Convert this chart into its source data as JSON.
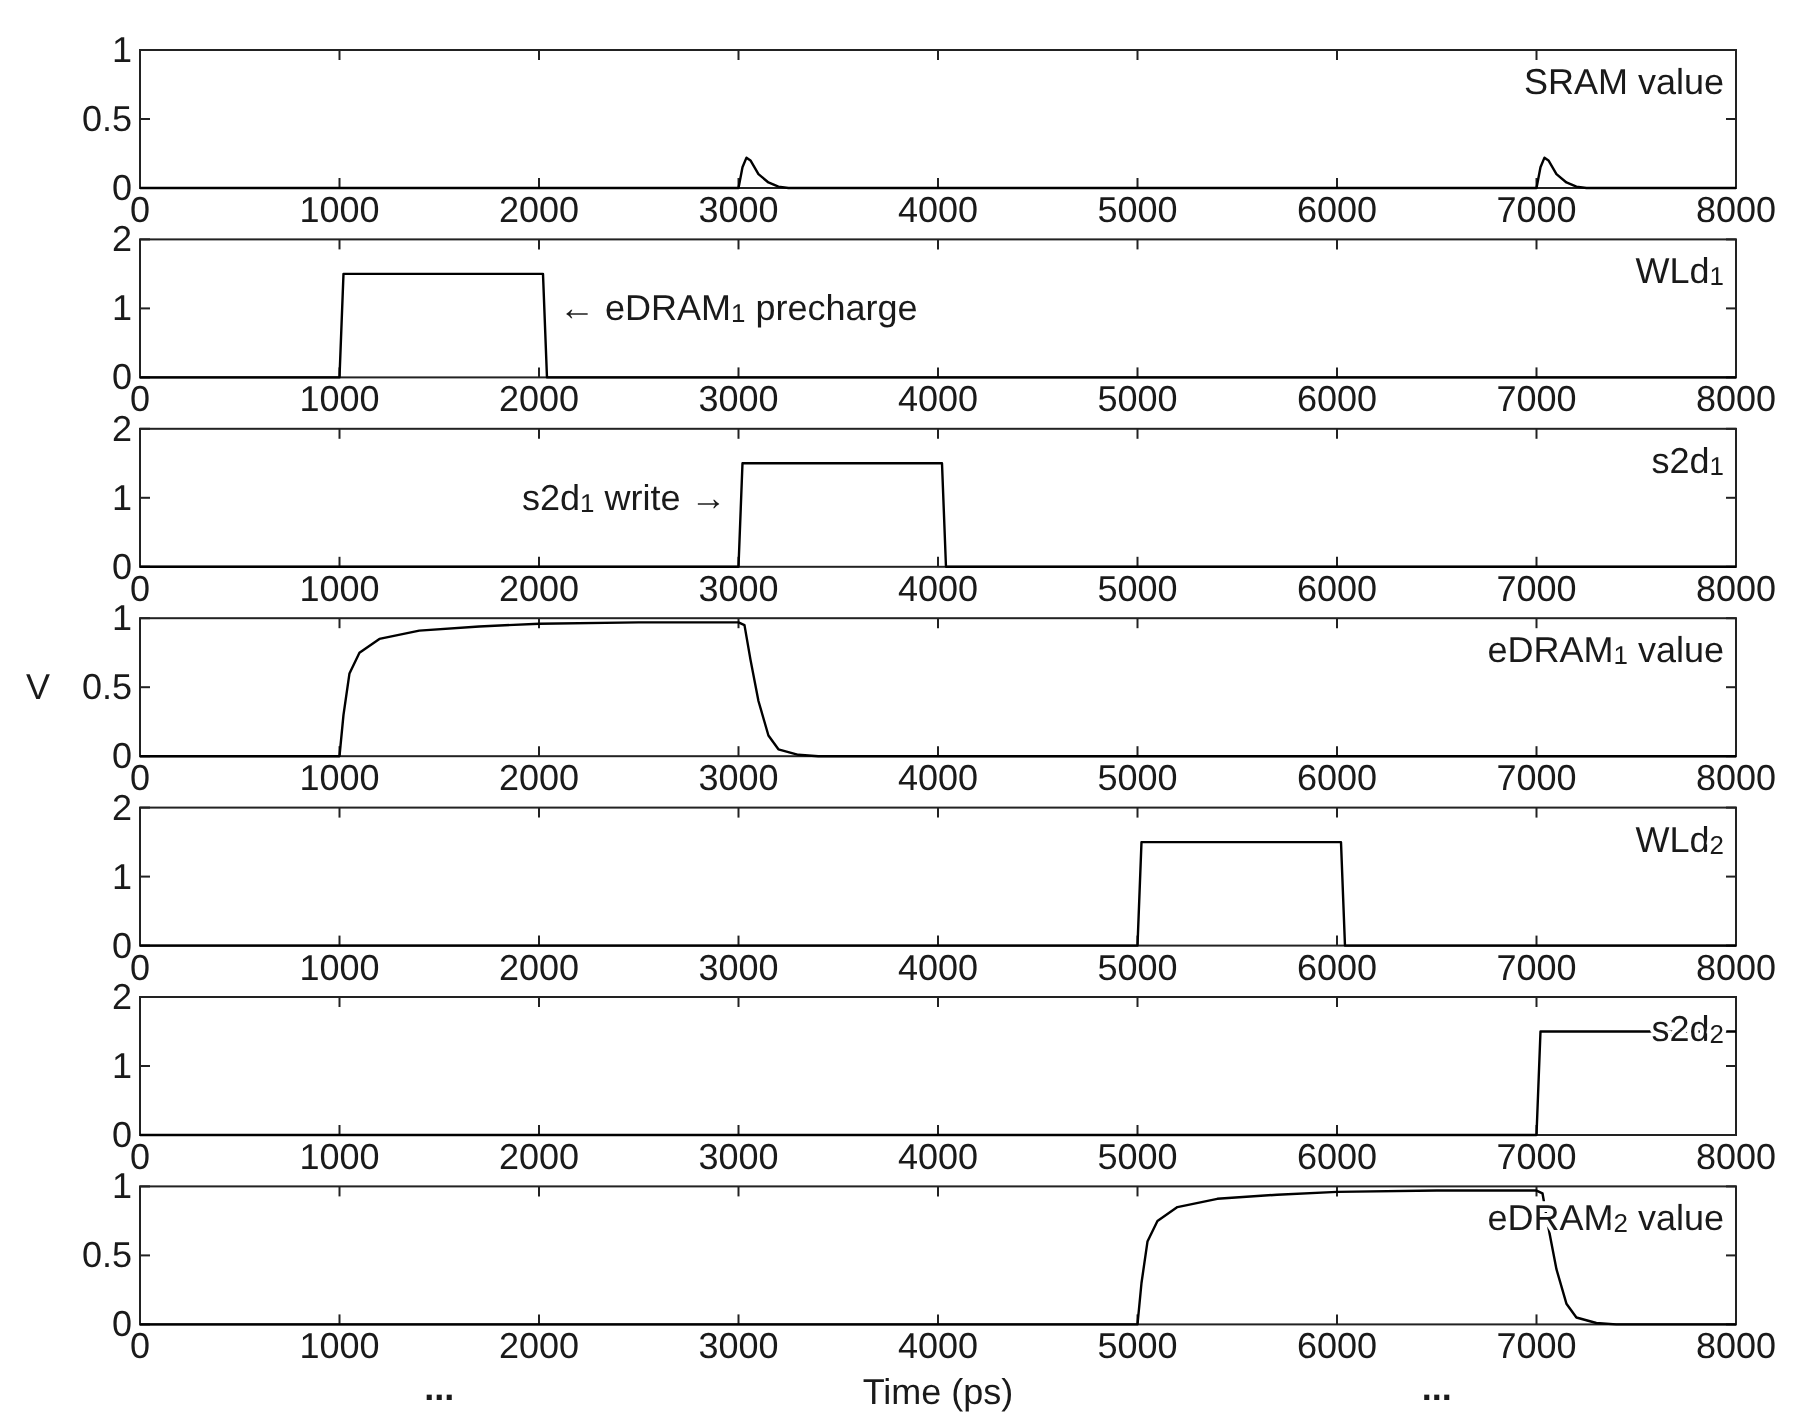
{
  "chart_data": [
    {
      "type": "line",
      "annotations": [
        "SRAM value"
      ],
      "xlim": [
        0,
        8000
      ],
      "xticks": [
        0,
        1000,
        2000,
        3000,
        4000,
        5000,
        6000,
        7000,
        8000
      ],
      "ylim": [
        0,
        1
      ],
      "yticks": [
        0,
        0.5,
        1
      ],
      "series": [
        {
          "color": "#000000",
          "x": [
            0,
            3000,
            3020,
            3040,
            3060,
            3100,
            3150,
            3200,
            3250,
            7000,
            7020,
            7040,
            7060,
            7100,
            7150,
            7200,
            7250,
            8000
          ],
          "values": [
            0,
            0,
            0.15,
            0.22,
            0.2,
            0.1,
            0.04,
            0.01,
            0,
            0,
            0.15,
            0.22,
            0.2,
            0.1,
            0.04,
            0.01,
            0,
            0
          ]
        }
      ]
    },
    {
      "type": "line",
      "annotations": [
        "WLd$_{1}$",
        {
          "text": "← eDRAM$_{1}$ precharge",
          "x": 2040,
          "y": 1
        }
      ],
      "xlim": [
        0,
        8000
      ],
      "xticks": [
        0,
        1000,
        2000,
        3000,
        4000,
        5000,
        6000,
        7000,
        8000
      ],
      "ylim": [
        0,
        2
      ],
      "yticks": [
        0,
        1,
        2
      ],
      "series": [
        {
          "color": "#000000",
          "x": [
            0,
            1000,
            1020,
            2020,
            2040,
            8000
          ],
          "values": [
            0,
            0,
            1.5,
            1.5,
            0,
            0
          ]
        }
      ]
    },
    {
      "type": "line",
      "annotations": [
        "s2d$_{1}$",
        {
          "text": "s2d$_{1}$ write →",
          "x": 3000,
          "y": 1
        }
      ],
      "xlim": [
        0,
        8000
      ],
      "xticks": [
        0,
        1000,
        2000,
        3000,
        4000,
        5000,
        6000,
        7000,
        8000
      ],
      "ylim": [
        0,
        2
      ],
      "yticks": [
        0,
        1,
        2
      ],
      "series": [
        {
          "color": "#000000",
          "x": [
            0,
            3000,
            3020,
            4020,
            4040,
            8000
          ],
          "values": [
            0,
            0,
            1.5,
            1.5,
            0,
            0
          ]
        }
      ]
    },
    {
      "type": "line",
      "ylabel": "V",
      "annotations": [
        "eDRAM$_{1}$ value"
      ],
      "xlim": [
        0,
        8000
      ],
      "xticks": [
        0,
        1000,
        2000,
        3000,
        4000,
        5000,
        6000,
        7000,
        8000
      ],
      "ylim": [
        0,
        1
      ],
      "yticks": [
        0,
        0.5,
        1
      ],
      "series": [
        {
          "color": "#000000",
          "x": [
            0,
            1000,
            1020,
            1050,
            1100,
            1200,
            1400,
            1700,
            2000,
            2500,
            3000,
            3030,
            3060,
            3100,
            3150,
            3200,
            3300,
            3400,
            8000
          ],
          "values": [
            0,
            0,
            0.3,
            0.6,
            0.75,
            0.85,
            0.91,
            0.94,
            0.96,
            0.97,
            0.97,
            0.95,
            0.7,
            0.4,
            0.15,
            0.05,
            0.01,
            0,
            0
          ]
        }
      ]
    },
    {
      "type": "line",
      "annotations": [
        "WLd$_{2}$"
      ],
      "xlim": [
        0,
        8000
      ],
      "xticks": [
        0,
        1000,
        2000,
        3000,
        4000,
        5000,
        6000,
        7000,
        8000
      ],
      "ylim": [
        0,
        2
      ],
      "yticks": [
        0,
        1,
        2
      ],
      "series": [
        {
          "color": "#000000",
          "x": [
            0,
            5000,
            5020,
            6020,
            6040,
            8000
          ],
          "values": [
            0,
            0,
            1.5,
            1.5,
            0,
            0
          ]
        }
      ]
    },
    {
      "type": "line",
      "annotations": [
        "s2d$_{2}$"
      ],
      "xlim": [
        0,
        8000
      ],
      "xticks": [
        0,
        1000,
        2000,
        3000,
        4000,
        5000,
        6000,
        7000,
        8000
      ],
      "ylim": [
        0,
        2
      ],
      "yticks": [
        0,
        1,
        2
      ],
      "series": [
        {
          "color": "#000000",
          "x": [
            0,
            7000,
            7020,
            8000
          ],
          "values": [
            0,
            0,
            1.5,
            1.5
          ]
        }
      ]
    },
    {
      "type": "line",
      "xlabel": "Time (ps)",
      "annotations": [
        "eDRAM$_{2}$ value",
        "...",
        "..."
      ],
      "xlim": [
        0,
        8000
      ],
      "xticks": [
        0,
        1000,
        2000,
        3000,
        4000,
        5000,
        6000,
        7000,
        8000
      ],
      "ylim": [
        0,
        1
      ],
      "yticks": [
        0,
        0.5,
        1
      ],
      "series": [
        {
          "color": "#000000",
          "x": [
            0,
            5000,
            5020,
            5050,
            5100,
            5200,
            5400,
            5700,
            6000,
            6500,
            7000,
            7030,
            7060,
            7100,
            7150,
            7200,
            7300,
            7400,
            8000
          ],
          "values": [
            0,
            0,
            0.3,
            0.6,
            0.75,
            0.85,
            0.91,
            0.94,
            0.96,
            0.97,
            0.97,
            0.95,
            0.7,
            0.4,
            0.15,
            0.05,
            0.01,
            0,
            0
          ]
        }
      ]
    }
  ]
}
